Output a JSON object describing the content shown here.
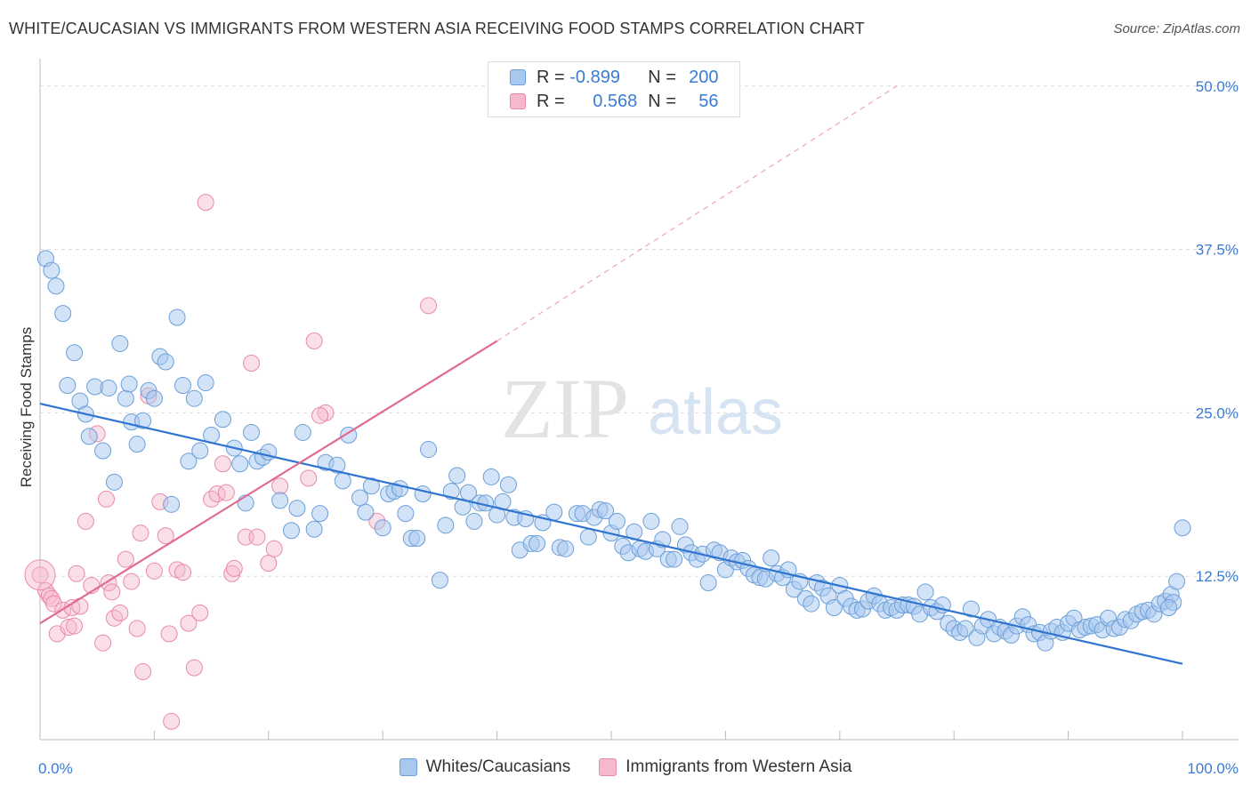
{
  "header": {
    "title": "WHITE/CAUCASIAN VS IMMIGRANTS FROM WESTERN ASIA RECEIVING FOOD STAMPS CORRELATION CHART",
    "source": "Source: ZipAtlas.com"
  },
  "watermark": {
    "zip": "ZIP",
    "atlas": "atlas"
  },
  "legend": {
    "rows": [
      {
        "r_label": "R =",
        "r_value": "-0.899",
        "n_label": "N =",
        "n_value": "200",
        "color": "#a8c8f0"
      },
      {
        "r_label": "R =",
        "r_value": "0.568",
        "n_label": "N =",
        "n_value": "56",
        "color": "#f7b8cb"
      }
    ]
  },
  "bottom_legend": {
    "items": [
      {
        "label": "Whites/Caucasians",
        "color": "#a8c8f0"
      },
      {
        "label": "Immigrants from Western Asia",
        "color": "#f7b8cb"
      }
    ]
  },
  "chart_data": {
    "type": "scatter",
    "title": "WHITE/CAUCASIAN VS IMMIGRANTS FROM WESTERN ASIA RECEIVING FOOD STAMPS CORRELATION CHART",
    "xlabel": "",
    "ylabel": "Receiving Food Stamps",
    "xlim": [
      0,
      100
    ],
    "ylim": [
      0,
      52.5
    ],
    "x_tick_labels": [
      "0.0%",
      "100.0%"
    ],
    "y_ticks": [
      12.5,
      25.0,
      37.5,
      50.0
    ],
    "y_tick_labels": [
      "12.5%",
      "25.0%",
      "37.5%",
      "50.0%"
    ],
    "grid": true,
    "legend_position": "top-center",
    "series": [
      {
        "name": "Whites/Caucasians",
        "color": "#6a9fd8",
        "fill": "#a8c8f0",
        "trend": {
          "x": [
            0,
            100
          ],
          "y": [
            25.7,
            5.8
          ],
          "style": "solid",
          "color": "#2f74d0"
        },
        "points": [
          [
            0.5,
            36.8
          ],
          [
            1,
            35.9
          ],
          [
            1.4,
            34.7
          ],
          [
            2,
            32.6
          ],
          [
            2.4,
            27.1
          ],
          [
            3,
            29.6
          ],
          [
            3.5,
            25.9
          ],
          [
            4,
            24.9
          ],
          [
            4.3,
            23.2
          ],
          [
            4.8,
            27
          ],
          [
            5.5,
            22.1
          ],
          [
            6,
            26.9
          ],
          [
            6.5,
            19.7
          ],
          [
            7,
            30.3
          ],
          [
            7.5,
            26.1
          ],
          [
            7.8,
            27.2
          ],
          [
            8,
            24.3
          ],
          [
            8.5,
            22.6
          ],
          [
            9,
            24.4
          ],
          [
            9.5,
            26.7
          ],
          [
            10,
            26.1
          ],
          [
            10.5,
            29.3
          ],
          [
            11,
            28.9
          ],
          [
            11.5,
            18
          ],
          [
            12,
            32.3
          ],
          [
            12.5,
            27.1
          ],
          [
            13,
            21.3
          ],
          [
            13.5,
            26.1
          ],
          [
            14,
            22.1
          ],
          [
            14.5,
            27.3
          ],
          [
            15,
            23.3
          ],
          [
            16,
            24.5
          ],
          [
            17,
            22.3
          ],
          [
            17.5,
            21.1
          ],
          [
            18,
            18.1
          ],
          [
            18.5,
            23.5
          ],
          [
            19,
            21.3
          ],
          [
            19.5,
            21.6
          ],
          [
            20,
            22
          ],
          [
            21,
            18.3
          ],
          [
            22,
            16
          ],
          [
            22.5,
            17.7
          ],
          [
            23,
            23.5
          ],
          [
            24,
            16.1
          ],
          [
            24.5,
            17.3
          ],
          [
            25,
            21.2
          ],
          [
            26,
            21
          ],
          [
            26.5,
            19.8
          ],
          [
            27,
            23.3
          ],
          [
            28,
            18.5
          ],
          [
            28.5,
            17.4
          ],
          [
            29,
            19.4
          ],
          [
            30,
            16.2
          ],
          [
            30.5,
            18.8
          ],
          [
            31,
            19
          ],
          [
            31.5,
            19.2
          ],
          [
            32,
            17.3
          ],
          [
            32.5,
            15.4
          ],
          [
            33,
            15.4
          ],
          [
            33.5,
            18.8
          ],
          [
            34,
            22.2
          ],
          [
            35,
            12.2
          ],
          [
            35.5,
            16.4
          ],
          [
            36,
            19
          ],
          [
            36.5,
            20.2
          ],
          [
            37,
            17.8
          ],
          [
            37.5,
            18.9
          ],
          [
            38,
            16.7
          ],
          [
            38.5,
            18.1
          ],
          [
            39,
            18.1
          ],
          [
            39.5,
            20.1
          ],
          [
            40,
            17.2
          ],
          [
            40.5,
            18.2
          ],
          [
            41,
            19.5
          ],
          [
            41.5,
            17
          ],
          [
            42,
            14.5
          ],
          [
            42.5,
            16.9
          ],
          [
            43,
            15
          ],
          [
            43.5,
            15
          ],
          [
            44,
            16.6
          ],
          [
            45,
            17.4
          ],
          [
            45.5,
            14.7
          ],
          [
            46,
            14.6
          ],
          [
            47,
            17.3
          ],
          [
            47.5,
            17.3
          ],
          [
            48,
            15.5
          ],
          [
            48.5,
            17
          ],
          [
            49,
            17.6
          ],
          [
            49.5,
            17.5
          ],
          [
            50,
            15.8
          ],
          [
            50.5,
            16.7
          ],
          [
            51,
            14.8
          ],
          [
            51.5,
            14.3
          ],
          [
            52,
            15.9
          ],
          [
            52.5,
            14.6
          ],
          [
            53,
            14.4
          ],
          [
            53.5,
            16.7
          ],
          [
            54,
            14.6
          ],
          [
            54.5,
            15.3
          ],
          [
            55,
            13.8
          ],
          [
            55.5,
            13.8
          ],
          [
            56,
            16.3
          ],
          [
            56.5,
            14.9
          ],
          [
            57,
            14.3
          ],
          [
            57.5,
            13.8
          ],
          [
            58,
            14.2
          ],
          [
            58.5,
            12
          ],
          [
            59,
            14.5
          ],
          [
            59.5,
            14.3
          ],
          [
            60,
            13
          ],
          [
            60.5,
            13.9
          ],
          [
            61,
            13.6
          ],
          [
            61.5,
            13.7
          ],
          [
            62,
            13.1
          ],
          [
            62.5,
            12.6
          ],
          [
            63,
            12.4
          ],
          [
            63.5,
            12.3
          ],
          [
            64,
            13.9
          ],
          [
            64.5,
            12.7
          ],
          [
            65,
            12.4
          ],
          [
            65.5,
            13
          ],
          [
            66,
            11.5
          ],
          [
            66.5,
            12.1
          ],
          [
            67,
            10.8
          ],
          [
            67.5,
            10.4
          ],
          [
            68,
            12
          ],
          [
            68.5,
            11.6
          ],
          [
            69,
            11
          ],
          [
            69.5,
            10.1
          ],
          [
            70,
            11.8
          ],
          [
            70.5,
            10.8
          ],
          [
            71,
            10.2
          ],
          [
            71.5,
            9.9
          ],
          [
            72,
            10
          ],
          [
            72.5,
            10.6
          ],
          [
            73,
            11
          ],
          [
            73.5,
            10.4
          ],
          [
            74,
            9.9
          ],
          [
            74.5,
            10.1
          ],
          [
            75,
            9.9
          ],
          [
            75.5,
            10.3
          ],
          [
            76,
            10.3
          ],
          [
            76.5,
            10.2
          ],
          [
            77,
            9.6
          ],
          [
            77.5,
            11.3
          ],
          [
            78,
            10.1
          ],
          [
            78.5,
            9.8
          ],
          [
            79,
            10.3
          ],
          [
            79.5,
            8.9
          ],
          [
            80,
            8.5
          ],
          [
            80.5,
            8.2
          ],
          [
            81,
            8.5
          ],
          [
            81.5,
            10
          ],
          [
            82,
            7.8
          ],
          [
            82.5,
            8.7
          ],
          [
            83,
            9.2
          ],
          [
            83.5,
            8.1
          ],
          [
            84,
            8.6
          ],
          [
            84.5,
            8.3
          ],
          [
            85,
            8
          ],
          [
            85.5,
            8.7
          ],
          [
            86,
            9.4
          ],
          [
            86.5,
            8.8
          ],
          [
            87,
            8.1
          ],
          [
            87.5,
            8.2
          ],
          [
            88,
            7.4
          ],
          [
            88.5,
            8.3
          ],
          [
            89,
            8.6
          ],
          [
            89.5,
            8.2
          ],
          [
            90,
            8.9
          ],
          [
            90.5,
            9.3
          ],
          [
            91,
            8.4
          ],
          [
            91.5,
            8.6
          ],
          [
            92,
            8.7
          ],
          [
            92.5,
            8.8
          ],
          [
            93,
            8.4
          ],
          [
            93.5,
            9.3
          ],
          [
            94,
            8.5
          ],
          [
            94.5,
            8.6
          ],
          [
            95,
            9.2
          ],
          [
            95.5,
            9.1
          ],
          [
            96,
            9.6
          ],
          [
            96.5,
            9.8
          ],
          [
            97,
            9.9
          ],
          [
            97.5,
            9.6
          ],
          [
            98,
            10.4
          ],
          [
            98.5,
            10.6
          ],
          [
            99,
            11.1
          ],
          [
            99.5,
            12.1
          ],
          [
            100,
            16.2
          ],
          [
            99.2,
            10.5
          ],
          [
            98.8,
            10.1
          ]
        ]
      },
      {
        "name": "Immigrants from Western Asia",
        "color": "#e88aa8",
        "fill": "#f7b8cb",
        "trend": {
          "x": [
            0,
            40,
            75
          ],
          "y": [
            8.9,
            30.5,
            50.0
          ],
          "style": "solid-then-dashed",
          "color": "#e06b93"
        },
        "points": [
          [
            0,
            12.6
          ],
          [
            0.5,
            11.4
          ],
          [
            0.8,
            11
          ],
          [
            1,
            10.8
          ],
          [
            1.2,
            10.4
          ],
          [
            1.5,
            8.1
          ],
          [
            2,
            9.9
          ],
          [
            2.5,
            8.6
          ],
          [
            2.8,
            10.1
          ],
          [
            3,
            8.7
          ],
          [
            3.2,
            12.7
          ],
          [
            3.5,
            10.2
          ],
          [
            4,
            16.7
          ],
          [
            4.5,
            11.8
          ],
          [
            5,
            23.4
          ],
          [
            5.5,
            7.4
          ],
          [
            5.8,
            18.4
          ],
          [
            6,
            12
          ],
          [
            6.3,
            11.3
          ],
          [
            6.5,
            9.3
          ],
          [
            7,
            9.7
          ],
          [
            7.5,
            13.8
          ],
          [
            8,
            12.1
          ],
          [
            8.5,
            8.5
          ],
          [
            8.8,
            15.8
          ],
          [
            9,
            5.2
          ],
          [
            9.5,
            26.3
          ],
          [
            10,
            12.9
          ],
          [
            10.5,
            18.2
          ],
          [
            11,
            15.6
          ],
          [
            11.3,
            8.1
          ],
          [
            11.5,
            1.4
          ],
          [
            12,
            13
          ],
          [
            12.5,
            12.8
          ],
          [
            13,
            8.9
          ],
          [
            13.5,
            5.5
          ],
          [
            14,
            9.7
          ],
          [
            14.5,
            41.1
          ],
          [
            15,
            18.4
          ],
          [
            15.5,
            18.8
          ],
          [
            16,
            21.1
          ],
          [
            16.3,
            18.9
          ],
          [
            16.8,
            12.7
          ],
          [
            17,
            13.1
          ],
          [
            18,
            15.5
          ],
          [
            18.5,
            28.8
          ],
          [
            19,
            15.5
          ],
          [
            20,
            13.5
          ],
          [
            20.5,
            14.6
          ],
          [
            21,
            19.4
          ],
          [
            23.5,
            20
          ],
          [
            24,
            30.5
          ],
          [
            25,
            25
          ],
          [
            29.5,
            16.7
          ],
          [
            34,
            33.2
          ],
          [
            24.5,
            24.8
          ]
        ]
      }
    ]
  }
}
